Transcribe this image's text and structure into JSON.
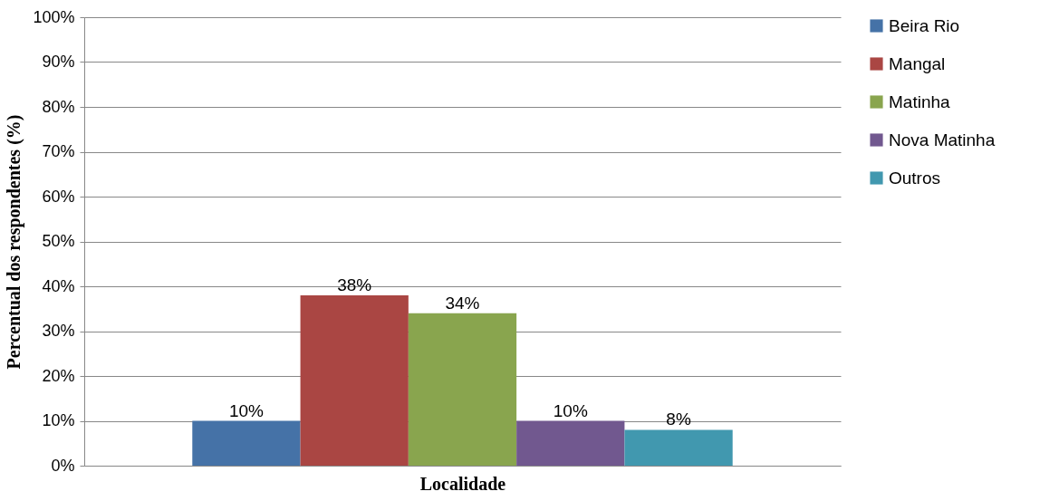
{
  "chart_data": {
    "type": "bar",
    "xlabel": "Localidade",
    "ylabel": "Percentual dos respondentes (%)",
    "categories": [
      null
    ],
    "series": [
      {
        "name": "Beira Rio",
        "color": "#4572a7",
        "values": [
          10
        ],
        "value_labels": [
          "10%"
        ]
      },
      {
        "name": "Mangal",
        "color": "#aa4643",
        "values": [
          38
        ],
        "value_labels": [
          "38%"
        ]
      },
      {
        "name": "Matinha",
        "color": "#89a54e",
        "values": [
          34
        ],
        "value_labels": [
          "34%"
        ]
      },
      {
        "name": "Nova Matinha",
        "color": "#71588f",
        "values": [
          10
        ],
        "value_labels": [
          "10%"
        ]
      },
      {
        "name": "Outros",
        "color": "#4198af",
        "values": [
          8
        ],
        "value_labels": [
          "8%"
        ]
      }
    ],
    "ylim": [
      0,
      100
    ],
    "yticks": [
      {
        "value": 0,
        "label": "0%"
      },
      {
        "value": 10,
        "label": "10%"
      },
      {
        "value": 20,
        "label": "20%"
      },
      {
        "value": 30,
        "label": "30%"
      },
      {
        "value": 40,
        "label": "40%"
      },
      {
        "value": 50,
        "label": "50%"
      },
      {
        "value": 60,
        "label": "60%"
      },
      {
        "value": 70,
        "label": "70%"
      },
      {
        "value": 80,
        "label": "80%"
      },
      {
        "value": 90,
        "label": "90%"
      },
      {
        "value": 100,
        "label": "100%"
      }
    ],
    "grid": "y",
    "legend": "right"
  }
}
